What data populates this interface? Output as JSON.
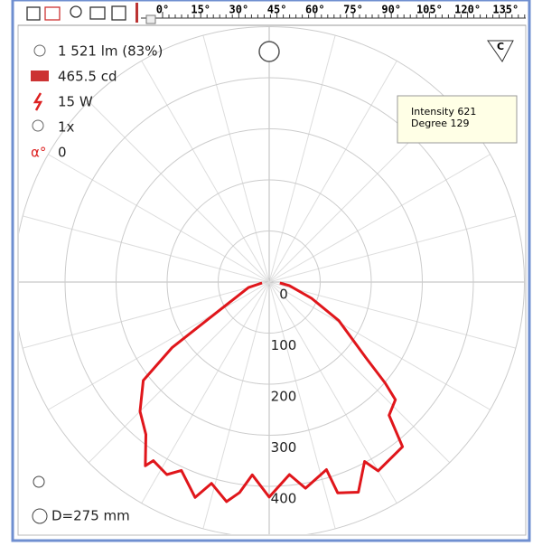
{
  "toolbar": {
    "ruler": [
      "0°",
      "15°",
      "30°",
      "45°",
      "60°",
      "75°",
      "90°",
      "105°",
      "120°",
      "135°"
    ]
  },
  "info": {
    "flux": "1 521 lm (83%)",
    "max_intensity": "465.5 cd",
    "power": "15 W",
    "count": "1x",
    "tilt": "0",
    "tilt_icon": "α°",
    "diameter": "D=275 mm",
    "c_button": "C"
  },
  "tooltip": {
    "intensity": "Intensity 621",
    "degree": "Degree 129"
  },
  "chart_data": {
    "type": "polar",
    "angles": [
      -83,
      -75,
      -60,
      -56,
      -52,
      -45,
      -39,
      -34,
      -33,
      -28,
      -25,
      -19,
      -16,
      -11,
      -8,
      -5,
      0,
      6,
      10,
      17,
      18,
      23,
      28,
      30,
      39,
      42,
      47,
      49,
      52,
      61,
      69,
      80,
      85
    ],
    "series": [
      {
        "color": "#e0161b",
        "values": [
          14,
          42,
          118,
          230,
          313,
          358,
          384,
          434,
          417,
          427,
          407,
          446,
          410,
          438,
          416,
          379,
          421,
          379,
          410,
          384,
          434,
          447,
          398,
          427,
          415,
          351,
          338,
          301,
          240,
          156,
          89,
          40,
          21
        ]
      }
    ],
    "rlim": [
      0,
      500
    ],
    "rticks": [
      0,
      100,
      200,
      300,
      400
    ],
    "grid": true
  }
}
